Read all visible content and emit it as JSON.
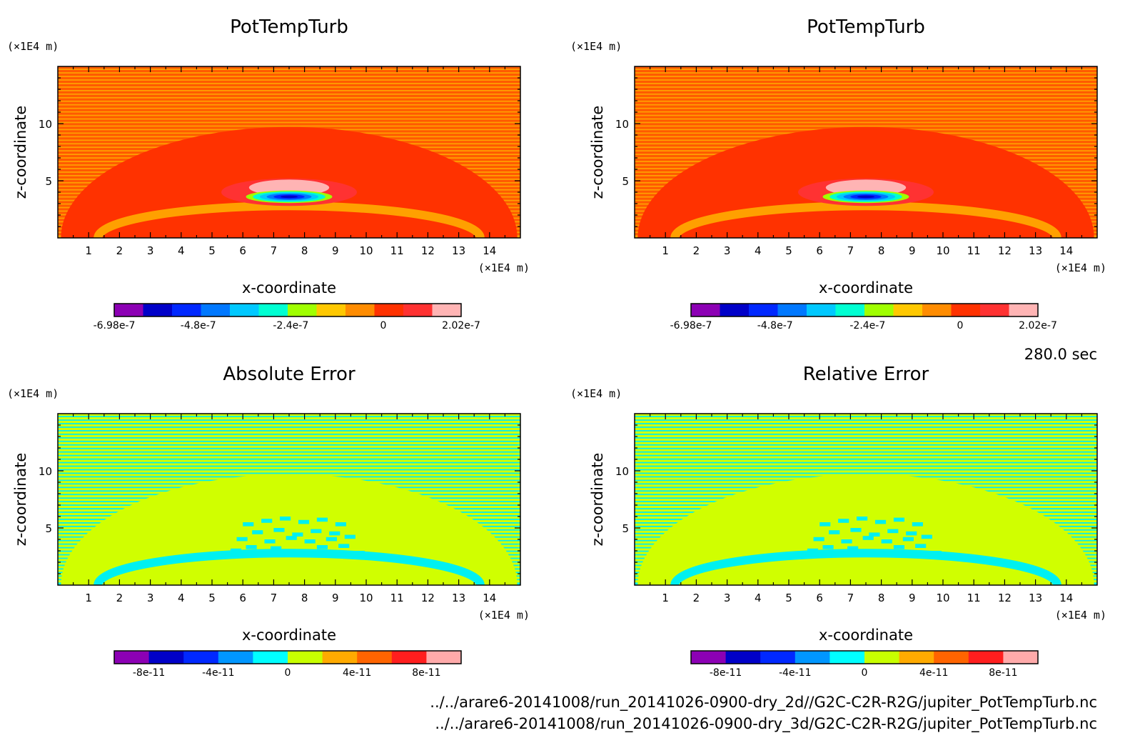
{
  "time_label": "280.0 sec",
  "footer": {
    "line1": "../../arare6-20141008/run_20141026-0900-dry_2d//G2C-C2R-R2G/jupiter_PotTempTurb.nc",
    "line2": "../../arare6-20141008/run_20141026-0900-dry_3d/G2C-C2R-R2G/jupiter_PotTempTurb.nc"
  },
  "chart_data": [
    {
      "type": "heatmap",
      "title": "PotTempTurb",
      "xlabel": "x-coordinate",
      "ylabel": "z-coordinate",
      "x_unit": "(×1E4 m)",
      "y_unit": "(×1E4 m)",
      "xlim": [
        0,
        15
      ],
      "ylim": [
        0,
        15
      ],
      "x_ticks": [
        "1",
        "2",
        "3",
        "4",
        "5",
        "6",
        "7",
        "8",
        "9",
        "10",
        "11",
        "12",
        "13",
        "14"
      ],
      "y_ticks": [
        "5",
        "10"
      ],
      "colorbar": {
        "labels": [
          "-6.98e-7",
          "-4.8e-7",
          "-2.4e-7",
          "0",
          "2.02e-7"
        ],
        "colors": [
          "#8c00b4",
          "#0000c8",
          "#0028ff",
          "#0078ff",
          "#00c8ff",
          "#00ffd2",
          "#a0ff00",
          "#ffc800",
          "#ff8c00",
          "#ff3200",
          "#ff3232",
          "#ffb4b4"
        ]
      },
      "pattern": "pottemp"
    },
    {
      "type": "heatmap",
      "title": "PotTempTurb",
      "xlabel": "x-coordinate",
      "ylabel": "z-coordinate",
      "x_unit": "(×1E4 m)",
      "y_unit": "(×1E4 m)",
      "xlim": [
        0,
        15
      ],
      "ylim": [
        0,
        15
      ],
      "x_ticks": [
        "1",
        "2",
        "3",
        "4",
        "5",
        "6",
        "7",
        "8",
        "9",
        "10",
        "11",
        "12",
        "13",
        "14"
      ],
      "y_ticks": [
        "5",
        "10"
      ],
      "colorbar": {
        "labels": [
          "-6.98e-7",
          "-4.8e-7",
          "-2.4e-7",
          "0",
          "2.02e-7"
        ],
        "colors": [
          "#8c00b4",
          "#0000c8",
          "#0028ff",
          "#0078ff",
          "#00c8ff",
          "#00ffd2",
          "#a0ff00",
          "#ffc800",
          "#ff8c00",
          "#ff3200",
          "#ff3232",
          "#ffb4b4"
        ]
      },
      "pattern": "pottemp"
    },
    {
      "type": "heatmap",
      "title": "Absolute Error",
      "xlabel": "x-coordinate",
      "ylabel": "z-coordinate",
      "x_unit": "(×1E4 m)",
      "y_unit": "(×1E4 m)",
      "xlim": [
        0,
        15
      ],
      "ylim": [
        0,
        15
      ],
      "x_ticks": [
        "1",
        "2",
        "3",
        "4",
        "5",
        "6",
        "7",
        "8",
        "9",
        "10",
        "11",
        "12",
        "13",
        "14"
      ],
      "y_ticks": [
        "5",
        "10"
      ],
      "colorbar": {
        "labels": [
          "-8e-11",
          "-4e-11",
          "0",
          "4e-11",
          "8e-11"
        ],
        "colors": [
          "#8c00b4",
          "#0000c8",
          "#0028ff",
          "#0096ff",
          "#00ffff",
          "#c8ff00",
          "#ffaa00",
          "#ff6400",
          "#ff1e1e",
          "#ffaaaa"
        ]
      },
      "pattern": "error"
    },
    {
      "type": "heatmap",
      "title": "Relative Error",
      "xlabel": "x-coordinate",
      "ylabel": "z-coordinate",
      "x_unit": "(×1E4 m)",
      "y_unit": "(×1E4 m)",
      "xlim": [
        0,
        15
      ],
      "ylim": [
        0,
        15
      ],
      "x_ticks": [
        "1",
        "2",
        "3",
        "4",
        "5",
        "6",
        "7",
        "8",
        "9",
        "10",
        "11",
        "12",
        "13",
        "14"
      ],
      "y_ticks": [
        "5",
        "10"
      ],
      "colorbar": {
        "labels": [
          "-8e-11",
          "-4e-11",
          "0",
          "4e-11",
          "8e-11"
        ],
        "colors": [
          "#8c00b4",
          "#0000c8",
          "#0028ff",
          "#0096ff",
          "#00ffff",
          "#c8ff00",
          "#ffaa00",
          "#ff6400",
          "#ff1e1e",
          "#ffaaaa"
        ]
      },
      "pattern": "error"
    }
  ]
}
